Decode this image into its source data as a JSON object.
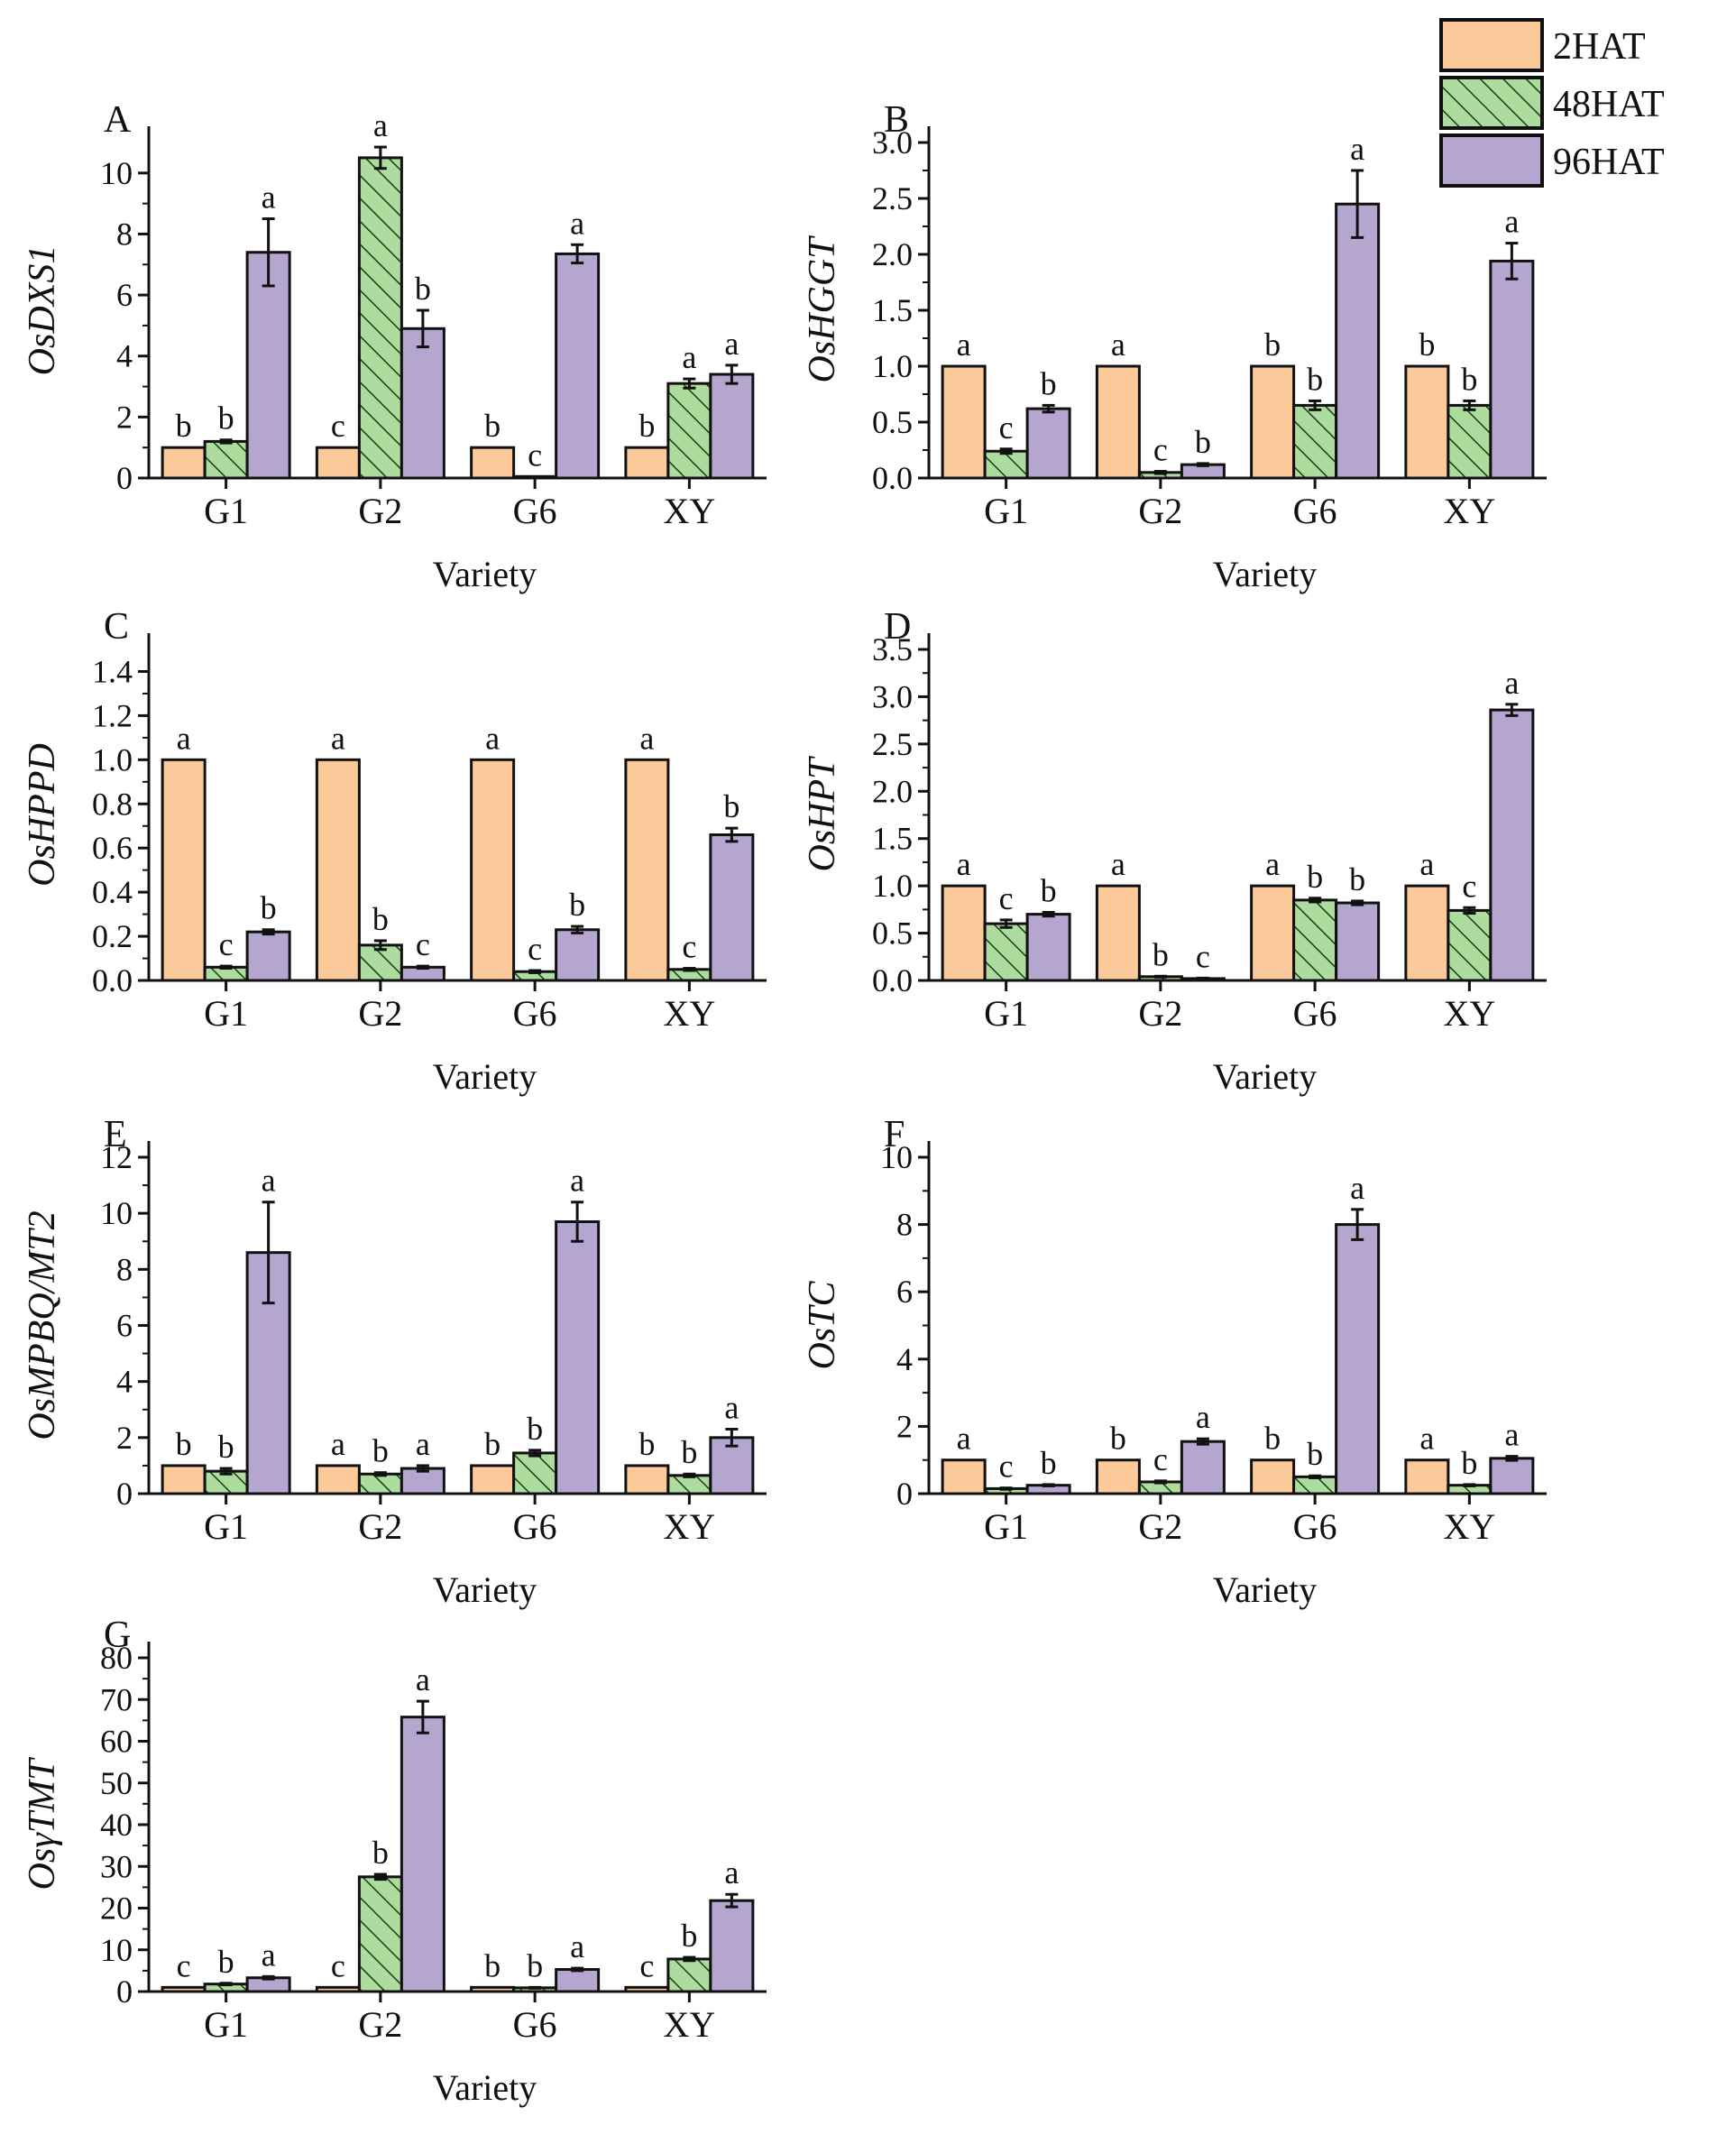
{
  "colors": {
    "2HAT": "#fbc99a",
    "48HAT": "#aedc9e",
    "96HAT": "#b4a6ce",
    "outline": "#111111",
    "hatch": "#1a3a1a"
  },
  "legend": {
    "position": "top-right",
    "labels": [
      "2HAT",
      "48HAT",
      "96HAT"
    ]
  },
  "chart_data": [
    {
      "panel": "A",
      "type": "bar",
      "ylabel": "OsDXS1",
      "xlabel": "Variety",
      "categories": [
        "G1",
        "G2",
        "G6",
        "XY"
      ],
      "ylim": [
        0,
        11
      ],
      "yticks": [
        "0",
        "2",
        "4",
        "6",
        "8",
        "10"
      ],
      "series": [
        {
          "name": "2HAT",
          "values": [
            1,
            1,
            1,
            1
          ],
          "errors": [
            0,
            0,
            0,
            0
          ],
          "labels": [
            "b",
            "c",
            "b",
            "b"
          ]
        },
        {
          "name": "48HAT",
          "values": [
            1.2,
            10.5,
            0.05,
            3.1
          ],
          "errors": [
            0.05,
            0.35,
            0,
            0.15
          ],
          "labels": [
            "b",
            "a",
            "c",
            "a"
          ]
        },
        {
          "name": "96HAT",
          "values": [
            7.4,
            4.9,
            7.35,
            3.4
          ],
          "errors": [
            1.1,
            0.6,
            0.3,
            0.3
          ],
          "labels": [
            "a",
            "b",
            "a",
            "a"
          ]
        }
      ]
    },
    {
      "panel": "B",
      "type": "bar",
      "ylabel": "OsHGGT",
      "xlabel": "Variety",
      "categories": [
        "G1",
        "G2",
        "G6",
        "XY"
      ],
      "ylim": [
        0,
        3.0
      ],
      "yticks": [
        "0.0",
        "0.5",
        "1.0",
        "1.5",
        "2.0",
        "2.5",
        "3.0"
      ],
      "series": [
        {
          "name": "2HAT",
          "values": [
            1,
            1,
            1,
            1
          ],
          "errors": [
            0,
            0,
            0,
            0
          ],
          "labels": [
            "a",
            "a",
            "b",
            "b"
          ]
        },
        {
          "name": "48HAT",
          "values": [
            0.24,
            0.05,
            0.65,
            0.65
          ],
          "errors": [
            0.02,
            0.01,
            0.04,
            0.04
          ],
          "labels": [
            "c",
            "c",
            "b",
            "b"
          ]
        },
        {
          "name": "96HAT",
          "values": [
            0.62,
            0.12,
            2.45,
            1.94
          ],
          "errors": [
            0.03,
            0.01,
            0.3,
            0.16
          ],
          "labels": [
            "b",
            "b",
            "a",
            "a"
          ]
        }
      ]
    },
    {
      "panel": "C",
      "type": "bar",
      "ylabel": "OsHPPD",
      "xlabel": "Variety",
      "categories": [
        "G1",
        "G2",
        "G6",
        "XY"
      ],
      "ylim": [
        0,
        1.5
      ],
      "yticks": [
        "0.0",
        "0.2",
        "0.4",
        "0.6",
        "0.8",
        "1.0",
        "1.2",
        "1.4"
      ],
      "series": [
        {
          "name": "2HAT",
          "values": [
            1,
            1,
            1,
            1
          ],
          "errors": [
            0,
            0,
            0,
            0
          ],
          "labels": [
            "a",
            "a",
            "a",
            "a"
          ]
        },
        {
          "name": "48HAT",
          "values": [
            0.06,
            0.16,
            0.04,
            0.05
          ],
          "errors": [
            0.005,
            0.02,
            0.005,
            0.005
          ],
          "labels": [
            "c",
            "b",
            "c",
            "c"
          ]
        },
        {
          "name": "96HAT",
          "values": [
            0.22,
            0.06,
            0.23,
            0.66
          ],
          "errors": [
            0.01,
            0.005,
            0.015,
            0.03
          ],
          "labels": [
            "b",
            "c",
            "b",
            "b"
          ]
        }
      ]
    },
    {
      "panel": "D",
      "type": "bar",
      "ylabel": "OsHPT",
      "xlabel": "Variety",
      "categories": [
        "G1",
        "G2",
        "G6",
        "XY"
      ],
      "ylim": [
        0,
        3.5
      ],
      "yticks": [
        "0.0",
        "0.5",
        "1.0",
        "1.5",
        "2.0",
        "2.5",
        "3.0",
        "3.5"
      ],
      "series": [
        {
          "name": "2HAT",
          "values": [
            1,
            1,
            1,
            1
          ],
          "errors": [
            0,
            0,
            0,
            0
          ],
          "labels": [
            "a",
            "a",
            "a",
            "a"
          ]
        },
        {
          "name": "48HAT",
          "values": [
            0.6,
            0.04,
            0.85,
            0.74
          ],
          "errors": [
            0.04,
            0.005,
            0.02,
            0.03
          ],
          "labels": [
            "c",
            "b",
            "b",
            "c"
          ]
        },
        {
          "name": "96HAT",
          "values": [
            0.7,
            0.02,
            0.82,
            2.86
          ],
          "errors": [
            0.02,
            0.005,
            0.02,
            0.06
          ],
          "labels": [
            "b",
            "c",
            "b",
            "a"
          ]
        }
      ]
    },
    {
      "panel": "E",
      "type": "bar",
      "ylabel": "OsMPBQ/MT2",
      "xlabel": "Variety",
      "categories": [
        "G1",
        "G2",
        "G6",
        "XY"
      ],
      "ylim": [
        0,
        12
      ],
      "yticks": [
        "0",
        "2",
        "4",
        "6",
        "8",
        "10",
        "12"
      ],
      "series": [
        {
          "name": "2HAT",
          "values": [
            1,
            1,
            1,
            1
          ],
          "errors": [
            0,
            0,
            0,
            0
          ],
          "labels": [
            "b",
            "a",
            "b",
            "b"
          ]
        },
        {
          "name": "48HAT",
          "values": [
            0.8,
            0.7,
            1.45,
            0.65
          ],
          "errors": [
            0.1,
            0.05,
            0.1,
            0.05
          ],
          "labels": [
            "b",
            "b",
            "b",
            "b"
          ]
        },
        {
          "name": "96HAT",
          "values": [
            8.6,
            0.9,
            9.7,
            2.0
          ],
          "errors": [
            1.8,
            0.1,
            0.7,
            0.3
          ],
          "labels": [
            "a",
            "a",
            "a",
            "a"
          ]
        }
      ]
    },
    {
      "panel": "F",
      "type": "bar",
      "ylabel": "OsTC",
      "xlabel": "Variety",
      "categories": [
        "G1",
        "G2",
        "G6",
        "XY"
      ],
      "ylim": [
        0,
        10
      ],
      "yticks": [
        "0",
        "2",
        "4",
        "6",
        "8",
        "10"
      ],
      "series": [
        {
          "name": "2HAT",
          "values": [
            1,
            1,
            1,
            1
          ],
          "errors": [
            0,
            0,
            0,
            0
          ],
          "labels": [
            "a",
            "b",
            "b",
            "a"
          ]
        },
        {
          "name": "48HAT",
          "values": [
            0.15,
            0.35,
            0.5,
            0.25
          ],
          "errors": [
            0.02,
            0.03,
            0.03,
            0.02
          ],
          "labels": [
            "c",
            "c",
            "b",
            "b"
          ]
        },
        {
          "name": "96HAT",
          "values": [
            0.25,
            1.55,
            8.0,
            1.05
          ],
          "errors": [
            0.02,
            0.08,
            0.45,
            0.06
          ],
          "labels": [
            "b",
            "a",
            "a",
            "a"
          ]
        }
      ]
    },
    {
      "panel": "G",
      "type": "bar",
      "ylabel": "OsγTMT",
      "xlabel": "Variety",
      "categories": [
        "G1",
        "G2",
        "G6",
        "XY"
      ],
      "ylim": [
        0,
        80
      ],
      "yticks": [
        "0",
        "10",
        "20",
        "30",
        "40",
        "50",
        "60",
        "70",
        "80"
      ],
      "series": [
        {
          "name": "2HAT",
          "values": [
            1,
            1,
            1,
            1
          ],
          "errors": [
            0,
            0,
            0,
            0
          ],
          "labels": [
            "c",
            "c",
            "b",
            "c"
          ]
        },
        {
          "name": "48HAT",
          "values": [
            1.8,
            27.5,
            0.9,
            7.8
          ],
          "errors": [
            0.2,
            0.6,
            0.1,
            0.4
          ],
          "labels": [
            "b",
            "b",
            "b",
            "b"
          ]
        },
        {
          "name": "96HAT",
          "values": [
            3.3,
            65.8,
            5.3,
            21.8
          ],
          "errors": [
            0.3,
            3.8,
            0.3,
            1.5
          ],
          "labels": [
            "a",
            "a",
            "a",
            "a"
          ]
        }
      ]
    }
  ]
}
